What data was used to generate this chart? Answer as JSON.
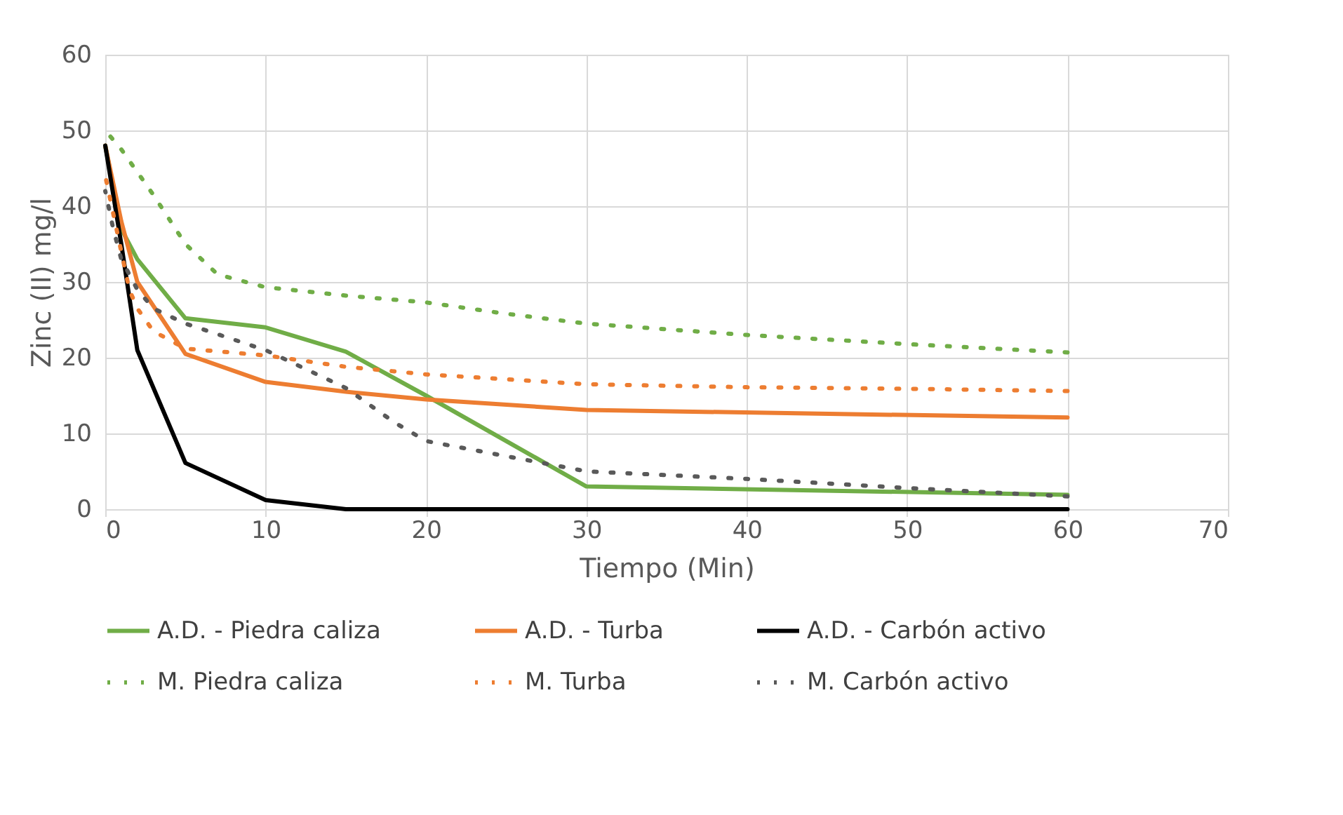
{
  "chart_data": {
    "type": "line",
    "xlabel": "Tiempo (Min)",
    "ylabel": "Zinc (II) mg/l",
    "xlim": [
      0,
      70
    ],
    "xticks": [
      0,
      10,
      20,
      30,
      40,
      50,
      60,
      70
    ],
    "ylim": [
      0,
      60
    ],
    "yticks": [
      0,
      10,
      20,
      30,
      40,
      50,
      60
    ],
    "grid": true,
    "legend": "bottom",
    "marker": "none",
    "series": [
      {
        "name": "A.D. - Piedra caliza",
        "color": "#70ad47",
        "line_style": "solid",
        "x": [
          0,
          1,
          2,
          5,
          10,
          15,
          20,
          30,
          60
        ],
        "values": [
          48,
          37,
          33,
          25.2,
          24,
          20.8,
          15,
          3,
          1.9
        ]
      },
      {
        "name": "A.D. - Turba",
        "color": "#ed7d31",
        "line_style": "solid",
        "x": [
          0,
          1,
          2,
          5,
          10,
          15,
          20,
          30,
          60
        ],
        "values": [
          48,
          38,
          30,
          20.5,
          16.8,
          15.5,
          14.5,
          13.1,
          12.1
        ]
      },
      {
        "name": "A.D. - Carbón activo",
        "color": "#000000",
        "line_style": "solid",
        "x": [
          0,
          1,
          2,
          5,
          10,
          15,
          20,
          30,
          60
        ],
        "values": [
          48,
          35,
          21,
          6.1,
          1.2,
          0,
          0,
          0,
          0
        ]
      },
      {
        "name": "M. Piedra caliza",
        "color": "#70ad47",
        "line_style": "dotted",
        "x": [
          0,
          1,
          2,
          3,
          5,
          7,
          10,
          15,
          20,
          25,
          30,
          40,
          50,
          60
        ],
        "values": [
          50,
          47.5,
          44.5,
          41.5,
          35,
          31,
          29.3,
          28.2,
          27.3,
          25.8,
          24.5,
          23,
          21.8,
          20.7
        ]
      },
      {
        "name": "M. Turba",
        "color": "#ed7d31",
        "line_style": "dotted",
        "x": [
          0,
          0.3,
          0.6,
          1,
          1.5,
          2,
          3,
          5,
          10,
          15,
          20,
          30,
          40,
          50,
          60
        ],
        "values": [
          44,
          41,
          38,
          34,
          29,
          26.5,
          23.5,
          21.2,
          20.3,
          18.8,
          17.8,
          16.5,
          16.1,
          15.9,
          15.6
        ]
      },
      {
        "name": "M. Carbón activo",
        "color": "#595959",
        "line_style": "dotted",
        "x": [
          0,
          0.5,
          1,
          2,
          3,
          5,
          10,
          15,
          18,
          20,
          25,
          30,
          40,
          50,
          60
        ],
        "values": [
          42,
          37,
          33,
          29,
          26.5,
          24.5,
          21,
          16,
          11.5,
          9,
          7,
          5,
          4,
          2.8,
          1.7
        ]
      }
    ]
  }
}
